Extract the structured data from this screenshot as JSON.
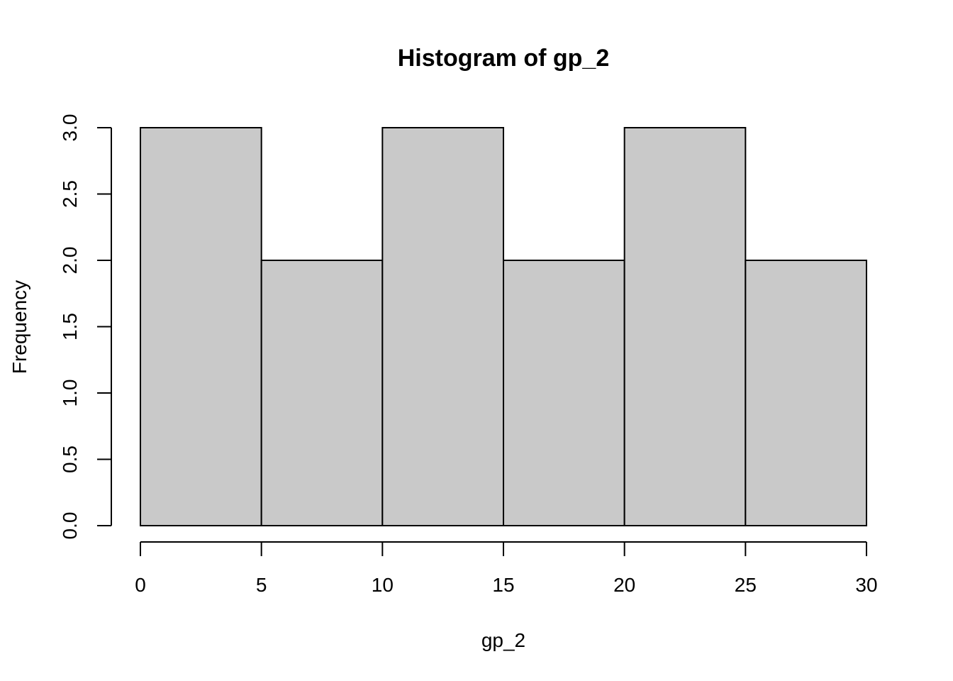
{
  "chart_data": {
    "type": "bar",
    "title": "Histogram of gp_2",
    "xlabel": "gp_2",
    "ylabel": "Frequency",
    "bins": [
      {
        "from": 0,
        "to": 5,
        "count": 3
      },
      {
        "from": 5,
        "to": 10,
        "count": 2
      },
      {
        "from": 10,
        "to": 15,
        "count": 3
      },
      {
        "from": 15,
        "to": 20,
        "count": 2
      },
      {
        "from": 20,
        "to": 25,
        "count": 3
      },
      {
        "from": 25,
        "to": 30,
        "count": 2
      }
    ],
    "xlim": [
      0,
      30
    ],
    "ylim": [
      0,
      3
    ],
    "xticks": [
      {
        "value": 0,
        "label": "0"
      },
      {
        "value": 5,
        "label": "5"
      },
      {
        "value": 10,
        "label": "10"
      },
      {
        "value": 15,
        "label": "15"
      },
      {
        "value": 20,
        "label": "20"
      },
      {
        "value": 25,
        "label": "25"
      },
      {
        "value": 30,
        "label": "30"
      }
    ],
    "yticks": [
      {
        "value": 0,
        "label": "0.0"
      },
      {
        "value": 0.5,
        "label": "0.5"
      },
      {
        "value": 1,
        "label": "1.0"
      },
      {
        "value": 1.5,
        "label": "1.5"
      },
      {
        "value": 2,
        "label": "2.0"
      },
      {
        "value": 2.5,
        "label": "2.5"
      },
      {
        "value": 3,
        "label": "3.0"
      }
    ],
    "bar_color": "#c9c9c9",
    "edge_color": "#000000",
    "grid": false,
    "legend": "none"
  }
}
